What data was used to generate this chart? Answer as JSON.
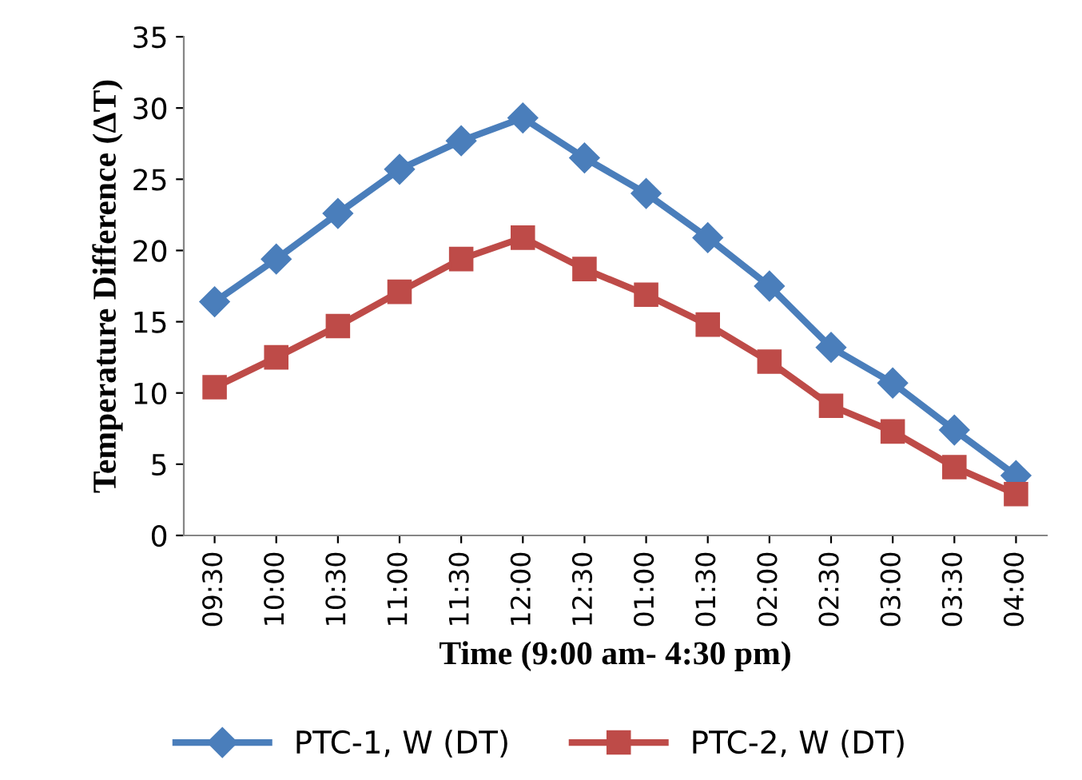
{
  "chart_data": {
    "type": "line",
    "xlabel": "Time (9:00 am- 4:30 pm)",
    "ylabel": "Temperature Difference (ΔT)",
    "categories": [
      "09:30",
      "10:00",
      "10:30",
      "11:00",
      "11:30",
      "12:00",
      "12:30",
      "01:00",
      "01:30",
      "02:00",
      "02:30",
      "03:00",
      "03:30",
      "04:00"
    ],
    "series": [
      {
        "name": "PTC-1, W (DT)",
        "color": "#4a7ebb",
        "marker": "diamond",
        "values": [
          16.4,
          19.4,
          22.6,
          25.7,
          27.7,
          29.3,
          26.5,
          24.0,
          20.9,
          17.5,
          13.2,
          10.7,
          7.4,
          4.2
        ]
      },
      {
        "name": "PTC-2, W (DT)",
        "color": "#be4b48",
        "marker": "square",
        "values": [
          10.4,
          12.5,
          14.7,
          17.1,
          19.4,
          20.9,
          18.7,
          16.9,
          14.8,
          12.2,
          9.1,
          7.3,
          4.8,
          2.9
        ]
      }
    ],
    "ylim": [
      0,
      35
    ],
    "yticks": [
      0,
      5,
      10,
      15,
      20,
      25,
      30,
      35
    ],
    "grid": false,
    "legend": "bottom",
    "line_style": "solid"
  }
}
